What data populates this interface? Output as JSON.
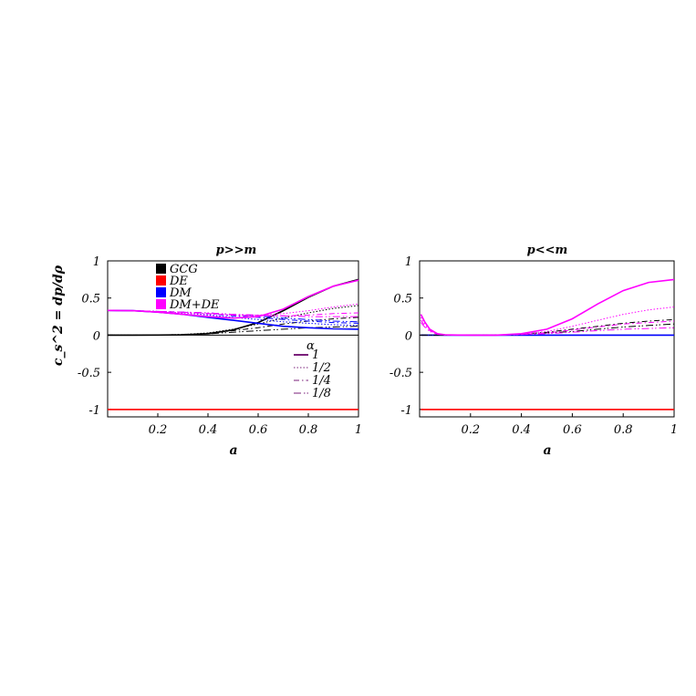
{
  "chart_data": [
    {
      "type": "line",
      "title": "p>>m",
      "xlabel": "a",
      "ylabel": "c_s^2 = dp/dρ",
      "xlim": [
        0,
        1
      ],
      "ylim": [
        -1.1,
        1
      ],
      "xticks": [
        "0.2",
        "0.4",
        "0.6",
        "0.8",
        "1"
      ],
      "yticks": [
        "-1",
        "-0.5",
        "0",
        "0.5",
        "1"
      ],
      "x": [
        0.0,
        0.1,
        0.2,
        0.3,
        0.4,
        0.5,
        0.6,
        0.7,
        0.8,
        0.9,
        1.0
      ],
      "legend_components": [
        {
          "label": "GCG",
          "color": "#000000"
        },
        {
          "label": "DE",
          "color": "#ff0000"
        },
        {
          "label": "DM",
          "color": "#0000ff"
        },
        {
          "label": "DM+DE",
          "color": "#ff00ff"
        }
      ],
      "legend_alpha_title": "α",
      "legend_alpha": [
        {
          "label": "1",
          "dash": "solid"
        },
        {
          "label": "1/2",
          "dash": "dotted"
        },
        {
          "label": "1/4",
          "dash": "dashdot"
        },
        {
          "label": "1/8",
          "dash": "dashdotdot"
        }
      ],
      "series": [
        {
          "component": "DE",
          "alpha": "all",
          "color": "#ff0000",
          "dash": "solid",
          "values": [
            -1,
            -1,
            -1,
            -1,
            -1,
            -1,
            -1,
            -1,
            -1,
            -1,
            -1
          ]
        },
        {
          "component": "GCG",
          "alpha": "1",
          "color": "#000000",
          "dash": "solid",
          "values": [
            0,
            0.0,
            0.001,
            0.005,
            0.02,
            0.07,
            0.17,
            0.33,
            0.51,
            0.66,
            0.75
          ]
        },
        {
          "component": "GCG",
          "alpha": "1/2",
          "color": "#000000",
          "dash": "dotted",
          "values": [
            0,
            0.0,
            0.002,
            0.01,
            0.03,
            0.08,
            0.15,
            0.23,
            0.3,
            0.36,
            0.4
          ]
        },
        {
          "component": "GCG",
          "alpha": "1/4",
          "color": "#000000",
          "dash": "dashdot",
          "values": [
            0,
            0.0,
            0.002,
            0.01,
            0.025,
            0.06,
            0.1,
            0.15,
            0.19,
            0.22,
            0.24
          ]
        },
        {
          "component": "GCG",
          "alpha": "1/8",
          "color": "#000000",
          "dash": "dashdotdot",
          "values": [
            0,
            0.0,
            0.001,
            0.007,
            0.018,
            0.04,
            0.06,
            0.08,
            0.1,
            0.11,
            0.12
          ]
        },
        {
          "component": "DM",
          "alpha": "1",
          "color": "#0000ff",
          "dash": "solid",
          "values": [
            0.333,
            0.33,
            0.31,
            0.28,
            0.24,
            0.2,
            0.16,
            0.12,
            0.1,
            0.085,
            0.08
          ]
        },
        {
          "component": "DM",
          "alpha": "1/2",
          "color": "#0000ff",
          "dash": "dotted",
          "values": [
            0.333,
            0.33,
            0.32,
            0.3,
            0.27,
            0.24,
            0.21,
            0.18,
            0.16,
            0.14,
            0.13
          ]
        },
        {
          "component": "DM",
          "alpha": "1/4",
          "color": "#0000ff",
          "dash": "dashdot",
          "values": [
            0.333,
            0.33,
            0.32,
            0.31,
            0.29,
            0.26,
            0.24,
            0.21,
            0.19,
            0.17,
            0.16
          ]
        },
        {
          "component": "DM",
          "alpha": "1/8",
          "color": "#0000ff",
          "dash": "dashdotdot",
          "values": [
            0.333,
            0.33,
            0.32,
            0.31,
            0.3,
            0.28,
            0.26,
            0.23,
            0.21,
            0.19,
            0.18
          ]
        },
        {
          "component": "DM+DE",
          "alpha": "1",
          "color": "#ff00ff",
          "dash": "solid",
          "values": [
            0.333,
            0.33,
            0.31,
            0.28,
            0.25,
            0.23,
            0.25,
            0.35,
            0.52,
            0.66,
            0.74
          ]
        },
        {
          "component": "DM+DE",
          "alpha": "1/2",
          "color": "#ff00ff",
          "dash": "dotted",
          "values": [
            0.333,
            0.33,
            0.32,
            0.3,
            0.28,
            0.27,
            0.27,
            0.29,
            0.33,
            0.38,
            0.42
          ]
        },
        {
          "component": "DM+DE",
          "alpha": "1/4",
          "color": "#ff00ff",
          "dash": "dashdot",
          "values": [
            0.333,
            0.33,
            0.32,
            0.31,
            0.29,
            0.27,
            0.26,
            0.26,
            0.27,
            0.29,
            0.3
          ]
        },
        {
          "component": "DM+DE",
          "alpha": "1/8",
          "color": "#ff00ff",
          "dash": "dashdotdot",
          "values": [
            0.333,
            0.33,
            0.32,
            0.31,
            0.3,
            0.28,
            0.27,
            0.26,
            0.25,
            0.25,
            0.25
          ]
        }
      ]
    },
    {
      "type": "line",
      "title": "p<<m",
      "xlabel": "a",
      "ylabel": "",
      "xlim": [
        0,
        1
      ],
      "ylim": [
        -1.1,
        1
      ],
      "xticks": [
        "0.2",
        "0.4",
        "0.6",
        "0.8",
        "1"
      ],
      "yticks": [
        "-1",
        "-0.5",
        "0",
        "0.5",
        "1"
      ],
      "x": [
        0.005,
        0.02,
        0.04,
        0.07,
        0.1,
        0.15,
        0.2,
        0.3,
        0.4,
        0.5,
        0.6,
        0.7,
        0.8,
        0.9,
        1.0
      ],
      "series": [
        {
          "component": "DE",
          "alpha": "all",
          "color": "#ff0000",
          "dash": "solid",
          "values": [
            -1,
            -1,
            -1,
            -1,
            -1,
            -1,
            -1,
            -1,
            -1,
            -1,
            -1,
            -1,
            -1,
            -1,
            -1
          ]
        },
        {
          "component": "DM",
          "alpha": "all",
          "color": "#0000ff",
          "dash": "solid",
          "values": [
            0,
            0,
            0,
            0,
            0,
            0,
            0,
            0,
            0,
            0,
            0,
            0,
            0,
            0,
            0
          ]
        },
        {
          "component": "GCG",
          "alpha": "1/8",
          "color": "#000000",
          "dash": "dashdotdot",
          "values": [
            0,
            0,
            0,
            0,
            0,
            0,
            0,
            0,
            0.01,
            0.03,
            0.05,
            0.08,
            0.11,
            0.13,
            0.15
          ]
        },
        {
          "component": "GCG",
          "alpha": "1/4",
          "color": "#000000",
          "dash": "dashdot",
          "values": [
            0,
            0,
            0,
            0,
            0,
            0,
            0,
            0,
            0.015,
            0.04,
            0.08,
            0.12,
            0.16,
            0.19,
            0.21
          ]
        },
        {
          "component": "DM+DE",
          "alpha": "1",
          "color": "#ff00ff",
          "dash": "solid",
          "values": [
            0.28,
            0.18,
            0.08,
            0.02,
            0.005,
            0.001,
            0,
            0,
            0.02,
            0.08,
            0.22,
            0.42,
            0.6,
            0.71,
            0.75
          ]
        },
        {
          "component": "DM+DE",
          "alpha": "1/2",
          "color": "#ff00ff",
          "dash": "dotted",
          "values": [
            0.24,
            0.16,
            0.07,
            0.02,
            0.005,
            0.001,
            0,
            0,
            0.015,
            0.05,
            0.12,
            0.2,
            0.28,
            0.34,
            0.38
          ]
        },
        {
          "component": "DM+DE",
          "alpha": "1/4",
          "color": "#ff00ff",
          "dash": "dashdot",
          "values": [
            0.2,
            0.13,
            0.06,
            0.015,
            0.004,
            0.001,
            0,
            0,
            0.01,
            0.03,
            0.07,
            0.11,
            0.15,
            0.17,
            0.19
          ]
        },
        {
          "component": "DM+DE",
          "alpha": "1/8",
          "color": "#ff00ff",
          "dash": "dashdotdot",
          "values": [
            0.17,
            0.11,
            0.05,
            0.012,
            0.003,
            0.001,
            0,
            0,
            0.008,
            0.02,
            0.04,
            0.06,
            0.08,
            0.09,
            0.1
          ]
        }
      ]
    }
  ]
}
